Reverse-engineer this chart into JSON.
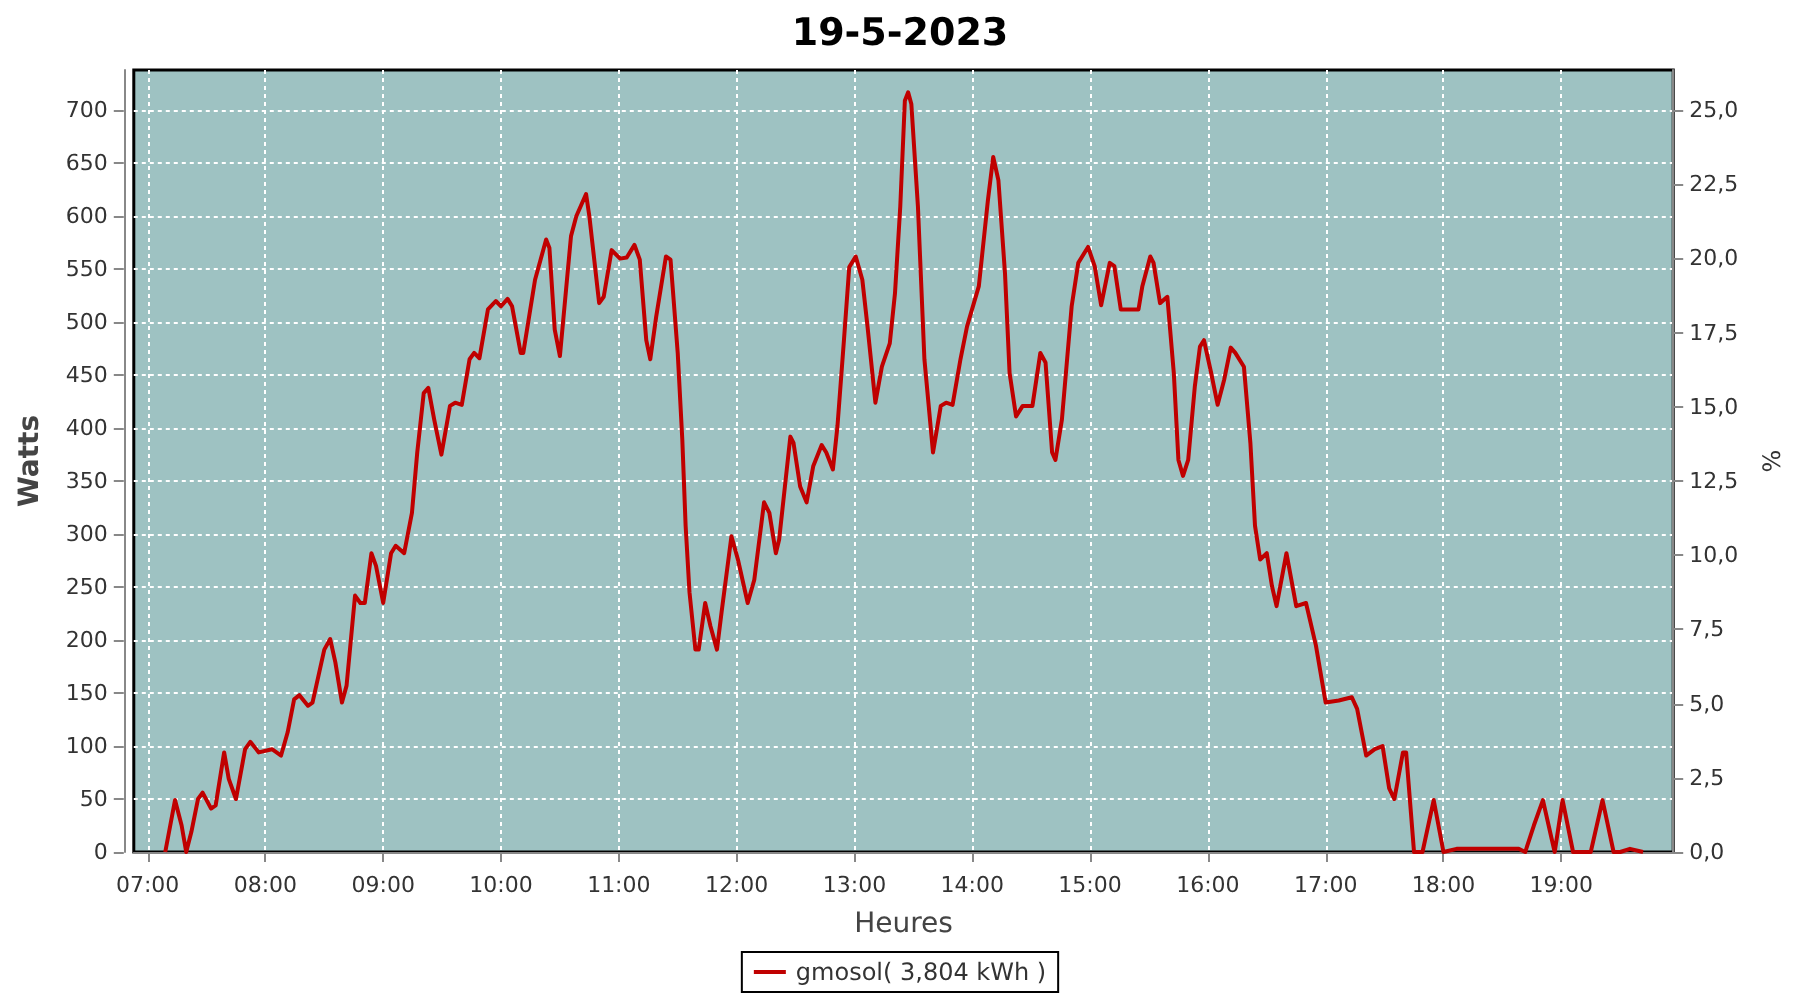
{
  "chart_data": {
    "type": "line",
    "title": "19-5-2023",
    "xlabel": "Heures",
    "ylabel": "Watts",
    "y2label": "%",
    "xlim": [
      6.883,
      19.95
    ],
    "xticks": [
      {
        "value": 7,
        "label": "07:00"
      },
      {
        "value": 8,
        "label": "08:00"
      },
      {
        "value": 9,
        "label": "09:00"
      },
      {
        "value": 10,
        "label": "10:00"
      },
      {
        "value": 11,
        "label": "11:00"
      },
      {
        "value": 12,
        "label": "12:00"
      },
      {
        "value": 13,
        "label": "13:00"
      },
      {
        "value": 14,
        "label": "14:00"
      },
      {
        "value": 15,
        "label": "15:00"
      },
      {
        "value": 16,
        "label": "16:00"
      },
      {
        "value": 17,
        "label": "17:00"
      },
      {
        "value": 18,
        "label": "18:00"
      },
      {
        "value": 19,
        "label": "19:00"
      }
    ],
    "ylim": [
      0,
      738
    ],
    "yticks": [
      0,
      50,
      100,
      150,
      200,
      250,
      300,
      350,
      400,
      450,
      500,
      550,
      600,
      650,
      700
    ],
    "y2lim": [
      0,
      26.35
    ],
    "y2ticks": [
      {
        "value": 0,
        "label": "0,0"
      },
      {
        "value": 2.5,
        "label": "2,5"
      },
      {
        "value": 5,
        "label": "5,0"
      },
      {
        "value": 7.5,
        "label": "7,5"
      },
      {
        "value": 10,
        "label": "10,0"
      },
      {
        "value": 12.5,
        "label": "12,5"
      },
      {
        "value": 15,
        "label": "15,0"
      },
      {
        "value": 17.5,
        "label": "17,5"
      },
      {
        "value": 20,
        "label": "20,0"
      },
      {
        "value": 22.5,
        "label": "22,5"
      },
      {
        "value": 25,
        "label": "25,0"
      }
    ],
    "grid": true,
    "legend": "bottom",
    "line_style": "solid",
    "series": [
      {
        "name": "gmosol( 3,804 kWh )",
        "color": "#c00000",
        "x": [
          7.15,
          7.233,
          7.289,
          7.328,
          7.372,
          7.428,
          7.467,
          7.539,
          7.578,
          7.65,
          7.689,
          7.75,
          7.828,
          7.872,
          7.944,
          8.056,
          8.133,
          8.189,
          8.244,
          8.289,
          8.361,
          8.4,
          8.5,
          8.55,
          8.594,
          8.65,
          8.689,
          8.761,
          8.806,
          8.844,
          8.9,
          8.939,
          9.0,
          9.067,
          9.106,
          9.178,
          9.244,
          9.289,
          9.344,
          9.383,
          9.433,
          9.494,
          9.567,
          9.611,
          9.667,
          9.733,
          9.772,
          9.817,
          9.889,
          9.956,
          10.0,
          10.056,
          10.094,
          10.167,
          10.189,
          10.289,
          10.383,
          10.411,
          10.456,
          10.5,
          10.594,
          10.639,
          10.722,
          10.75,
          10.833,
          10.872,
          10.939,
          11.011,
          11.067,
          11.133,
          11.178,
          11.233,
          11.267,
          11.317,
          11.4,
          11.439,
          11.5,
          11.539,
          11.567,
          11.6,
          11.65,
          11.678,
          11.733,
          11.778,
          11.833,
          11.872,
          11.956,
          12.011,
          12.094,
          12.15,
          12.233,
          12.278,
          12.333,
          12.361,
          12.456,
          12.483,
          12.539,
          12.594,
          12.65,
          12.722,
          12.761,
          12.817,
          12.856,
          12.911,
          12.956,
          13.011,
          13.067,
          13.111,
          13.178,
          13.233,
          13.3,
          13.344,
          13.389,
          13.428,
          13.456,
          13.483,
          13.539,
          13.594,
          13.667,
          13.733,
          13.778,
          13.833,
          13.9,
          13.956,
          14.056,
          14.133,
          14.178,
          14.222,
          14.278,
          14.317,
          14.372,
          14.428,
          14.511,
          14.578,
          14.622,
          14.678,
          14.706,
          14.761,
          14.844,
          14.9,
          14.983,
          15.039,
          15.094,
          15.167,
          15.206,
          15.261,
          15.344,
          15.411,
          15.444,
          15.511,
          15.539,
          15.594,
          15.656,
          15.711,
          15.75,
          15.789,
          15.833,
          15.889,
          15.933,
          15.967,
          16.028,
          16.083,
          16.139,
          16.194,
          16.233,
          16.306,
          16.361,
          16.4,
          16.444,
          16.5,
          16.544,
          16.583,
          16.667,
          16.75,
          16.833,
          16.917,
          17.0,
          17.111,
          17.222,
          17.267,
          17.344,
          17.417,
          17.483,
          17.539,
          17.583,
          17.656,
          17.683,
          17.75,
          17.822,
          17.917,
          18.0,
          18.111,
          18.639,
          18.694,
          18.767,
          18.844,
          18.917,
          18.944,
          19.011,
          19.1,
          19.25,
          19.35,
          19.444,
          19.5,
          19.583,
          19.694
        ],
        "values": [
          0,
          49,
          25,
          0,
          19,
          50,
          56,
          41,
          44,
          94,
          69,
          50,
          97,
          104,
          94,
          97,
          91,
          113,
          144,
          148,
          138,
          141,
          191,
          201,
          179,
          141,
          157,
          242,
          235,
          235,
          282,
          270,
          235,
          282,
          289,
          282,
          320,
          377,
          433,
          438,
          408,
          375,
          421,
          424,
          422,
          465,
          471,
          466,
          512,
          520,
          515,
          522,
          515,
          471,
          471,
          540,
          578,
          570,
          493,
          468,
          581,
          600,
          621,
          600,
          518,
          524,
          568,
          560,
          561,
          573,
          559,
          483,
          465,
          505,
          562,
          559,
          471,
          389,
          308,
          245,
          191,
          191,
          235,
          213,
          191,
          226,
          298,
          276,
          235,
          257,
          330,
          320,
          282,
          295,
          392,
          386,
          345,
          330,
          364,
          384,
          377,
          361,
          402,
          483,
          552,
          562,
          540,
          496,
          424,
          458,
          480,
          527,
          609,
          709,
          717,
          706,
          609,
          465,
          377,
          421,
          424,
          422,
          465,
          496,
          534,
          615,
          656,
          634,
          546,
          452,
          411,
          421,
          421,
          471,
          462,
          377,
          370,
          408,
          515,
          556,
          571,
          553,
          516,
          556,
          553,
          512,
          512,
          512,
          534,
          562,
          556,
          518,
          524,
          452,
          370,
          355,
          370,
          439,
          477,
          483,
          452,
          422,
          446,
          476,
          471,
          458,
          386,
          308,
          276,
          282,
          251,
          232,
          282,
          232,
          235,
          195,
          141,
          143,
          146,
          135,
          91,
          97,
          100,
          60,
          50,
          94,
          94,
          0,
          0,
          49,
          0,
          3,
          3,
          0,
          25,
          49,
          13,
          0,
          49,
          0,
          0,
          49,
          0,
          0,
          3,
          0
        ]
      }
    ]
  }
}
